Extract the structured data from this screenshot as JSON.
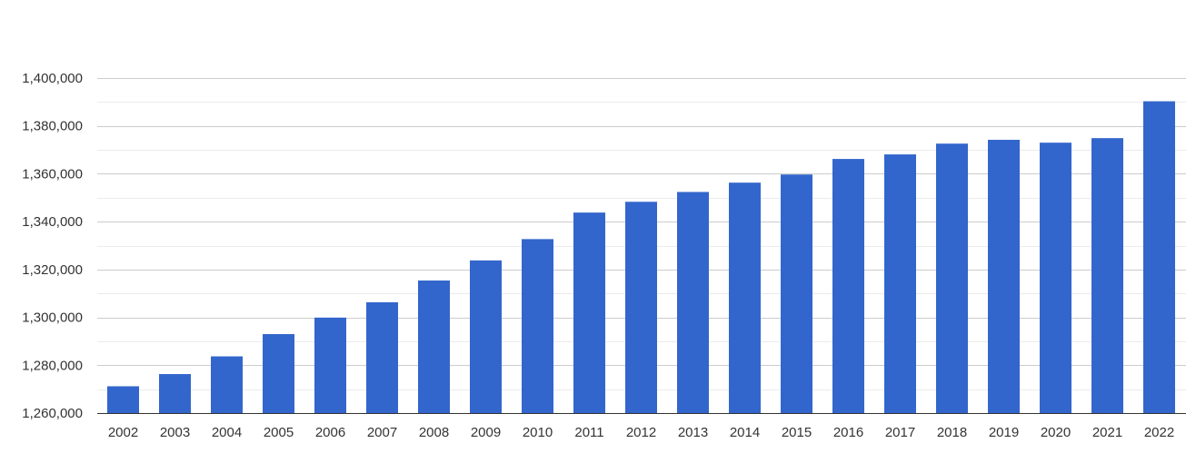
{
  "chart_data": {
    "type": "bar",
    "categories": [
      "2002",
      "2003",
      "2004",
      "2005",
      "2006",
      "2007",
      "2008",
      "2009",
      "2010",
      "2011",
      "2012",
      "2013",
      "2014",
      "2015",
      "2016",
      "2017",
      "2018",
      "2019",
      "2020",
      "2021",
      "2022"
    ],
    "values": [
      1271200,
      1276300,
      1283700,
      1293000,
      1299900,
      1306300,
      1315400,
      1323800,
      1332700,
      1343800,
      1348300,
      1352400,
      1356300,
      1359700,
      1366200,
      1368100,
      1372600,
      1374200,
      1373000,
      1374900,
      1390300
    ],
    "ylim": [
      1260000,
      1400000
    ],
    "yticks": [
      1260000,
      1280000,
      1300000,
      1320000,
      1340000,
      1360000,
      1380000,
      1400000
    ],
    "ytick_labels": [
      "1,260,000",
      "1,280,000",
      "1,300,000",
      "1,320,000",
      "1,340,000",
      "1,360,000",
      "1,380,000",
      "1,400,000"
    ],
    "minor_gridlines": true,
    "grid": true,
    "legend": "none",
    "bar_color": "#3366cc",
    "major_grid_color": "#cccccc",
    "minor_grid_color": "#ebebeb",
    "title": "",
    "xlabel": "",
    "ylabel": ""
  }
}
